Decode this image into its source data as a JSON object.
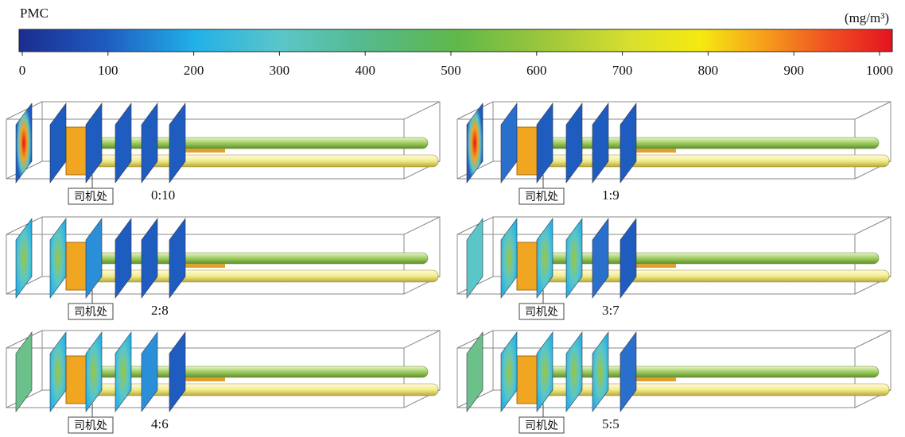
{
  "colorbar": {
    "title": "PMC",
    "unit": "(mg/m³)",
    "ticks": [
      0,
      100,
      200,
      300,
      400,
      500,
      600,
      700,
      800,
      900,
      1000
    ]
  },
  "panels": [
    {
      "location_label": "司机处",
      "ratio": "0:10"
    },
    {
      "location_label": "司机处",
      "ratio": "1:9"
    },
    {
      "location_label": "司机处",
      "ratio": "2:8"
    },
    {
      "location_label": "司机处",
      "ratio": "3:7"
    },
    {
      "location_label": "司机处",
      "ratio": "4:6"
    },
    {
      "location_label": "司机处",
      "ratio": "5:5"
    }
  ]
}
